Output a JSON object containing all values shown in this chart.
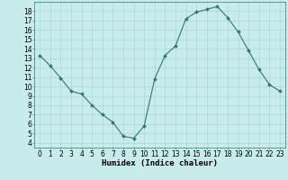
{
  "x": [
    0,
    1,
    2,
    3,
    4,
    5,
    6,
    7,
    8,
    9,
    10,
    11,
    12,
    13,
    14,
    15,
    16,
    17,
    18,
    19,
    20,
    21,
    22,
    23
  ],
  "y": [
    13.3,
    12.2,
    10.9,
    9.5,
    9.2,
    8.0,
    7.0,
    6.2,
    4.7,
    4.5,
    5.8,
    10.8,
    13.3,
    14.3,
    17.2,
    17.9,
    18.2,
    18.5,
    17.3,
    15.8,
    13.8,
    11.8,
    10.2,
    9.5
  ],
  "line_color": "#2d7a6e",
  "marker": "D",
  "marker_size": 2,
  "bg_color": "#c8ecea",
  "grid_color": "#a8d8d4",
  "xlabel": "Humidex (Indice chaleur)",
  "xlim": [
    -0.5,
    23.5
  ],
  "ylim": [
    3.5,
    19.0
  ],
  "xticks": [
    0,
    1,
    2,
    3,
    4,
    5,
    6,
    7,
    8,
    9,
    10,
    11,
    12,
    13,
    14,
    15,
    16,
    17,
    18,
    19,
    20,
    21,
    22,
    23
  ],
  "yticks": [
    4,
    5,
    6,
    7,
    8,
    9,
    10,
    11,
    12,
    13,
    14,
    15,
    16,
    17,
    18
  ],
  "tick_fontsize": 5.5,
  "xlabel_fontsize": 6.5,
  "spine_color": "#2d7a6e",
  "linewidth": 0.8
}
